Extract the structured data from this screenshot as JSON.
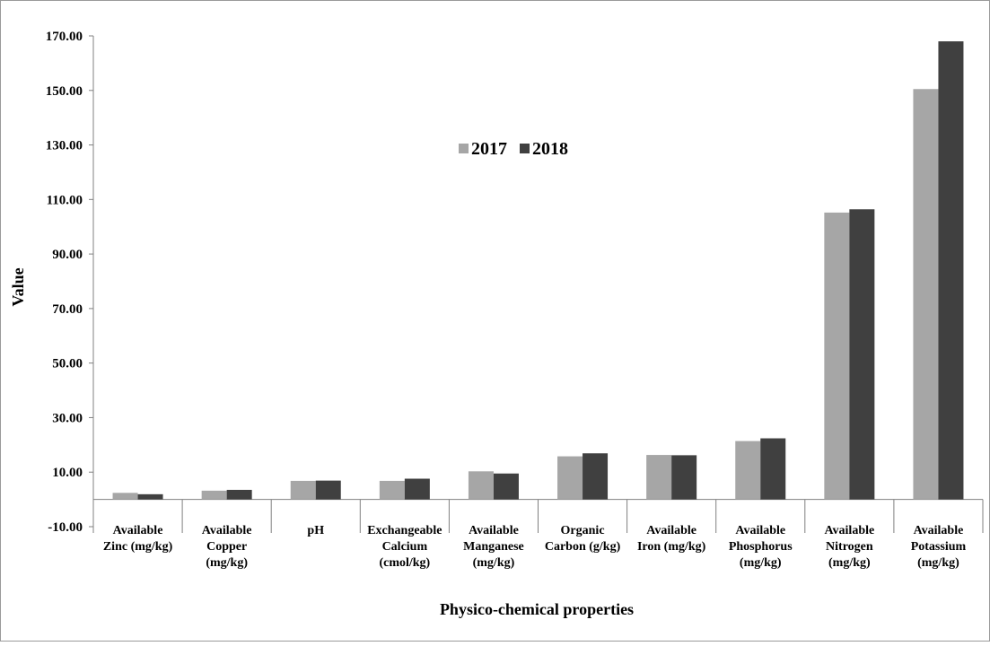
{
  "chart_data": {
    "type": "bar",
    "xlabel": "Physico-chemical properties",
    "ylabel": "Value",
    "ylim": [
      -10,
      170
    ],
    "yticks": [
      -10,
      10,
      30,
      50,
      70,
      90,
      110,
      130,
      150,
      170
    ],
    "ytick_labels": [
      "-10.00",
      "10.00",
      "30.00",
      "50.00",
      "70.00",
      "90.00",
      "110.00",
      "130.00",
      "150.00",
      "170.00"
    ],
    "grid": false,
    "legend_position": "top-center",
    "categories": [
      [
        "Available",
        "Zinc (mg/kg)"
      ],
      [
        "Available",
        "Copper",
        "(mg/kg)"
      ],
      [
        "pH"
      ],
      [
        "Exchangeable",
        "Calcium",
        "(cmol/kg)"
      ],
      [
        "Available",
        "Manganese",
        "(mg/kg)"
      ],
      [
        "Organic",
        "Carbon (g/kg)"
      ],
      [
        "Available",
        "Iron (mg/kg)"
      ],
      [
        "Available",
        "Phosphorus",
        "(mg/kg)"
      ],
      [
        "Available",
        "Nitrogen",
        "(mg/kg)"
      ],
      [
        "Available",
        "Potassium",
        "(mg/kg)"
      ]
    ],
    "series": [
      {
        "name": "2017",
        "color": "#a6a6a6",
        "values": [
          2.4,
          3.2,
          6.8,
          6.8,
          10.3,
          15.8,
          16.3,
          21.4,
          105.2,
          150.5
        ]
      },
      {
        "name": "2018",
        "color": "#404040",
        "values": [
          1.9,
          3.5,
          6.9,
          7.6,
          9.5,
          16.9,
          16.2,
          22.4,
          106.4,
          168.0
        ]
      }
    ]
  }
}
